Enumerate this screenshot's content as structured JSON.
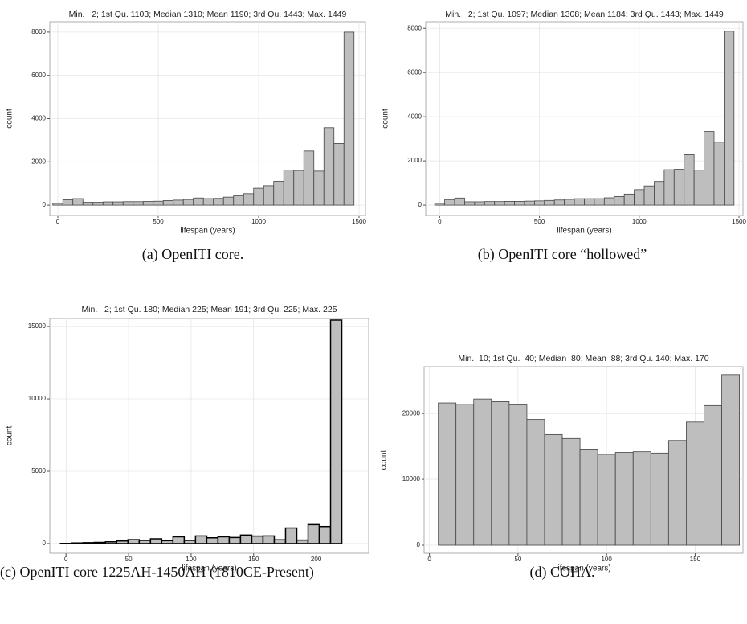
{
  "chart_data": [
    {
      "type": "histogram",
      "title": "Min.   2; 1st Qu. 1103; Median 1310; Mean 1190; 3rd Qu. 1443; Max. 1449",
      "xlabel": "lifespan (years)",
      "ylabel": "count",
      "caption": "(a) OpenITI core.",
      "bins": [
        -25,
        25,
        75,
        125,
        175,
        225,
        275,
        325,
        375,
        425,
        475,
        525,
        575,
        625,
        675,
        725,
        775,
        825,
        875,
        925,
        975,
        1025,
        1075,
        1125,
        1175,
        1225,
        1275,
        1325,
        1375,
        1425,
        1475
      ],
      "counts": [
        80,
        250,
        300,
        130,
        130,
        150,
        150,
        160,
        160,
        170,
        180,
        210,
        230,
        260,
        330,
        300,
        310,
        370,
        430,
        530,
        780,
        900,
        1100,
        1620,
        1600,
        2500,
        1570,
        3580,
        2850,
        8000
      ],
      "xlim": [
        -40,
        1532
      ],
      "ylim": [
        -480,
        8480
      ],
      "xticks": [
        0,
        500,
        1000,
        1500
      ],
      "yticks": [
        0,
        2000,
        4000,
        6000,
        8000
      ],
      "color": "#bebebe",
      "grid": true
    },
    {
      "type": "histogram",
      "title": "Min.   2; 1st Qu. 1097; Median 1308; Mean 1184; 3rd Qu. 1443; Max. 1449",
      "xlabel": "lifespan (years)",
      "ylabel": "count",
      "caption": "(b) OpenITI core “hollowed”",
      "bins": [
        -25,
        25,
        75,
        125,
        175,
        225,
        275,
        325,
        375,
        425,
        475,
        525,
        575,
        625,
        675,
        725,
        775,
        825,
        875,
        925,
        975,
        1025,
        1075,
        1125,
        1175,
        1225,
        1275,
        1325,
        1375,
        1425,
        1475
      ],
      "counts": [
        80,
        250,
        320,
        150,
        150,
        160,
        160,
        170,
        170,
        180,
        190,
        210,
        230,
        260,
        290,
        290,
        290,
        330,
        390,
        500,
        700,
        870,
        1070,
        1600,
        1620,
        2280,
        1580,
        3330,
        2850,
        7870
      ],
      "xlim": [
        -70,
        1520
      ],
      "ylim": [
        -470,
        8300
      ],
      "xticks": [
        0,
        500,
        1000,
        1500
      ],
      "yticks": [
        0,
        2000,
        4000,
        6000,
        8000
      ],
      "color": "#bebebe",
      "grid": true
    },
    {
      "type": "histogram",
      "title": "Min.   2; 1st Qu. 180; Median 225; Mean 191; 3rd Qu. 225; Max. 225",
      "xlabel": "lifespan (years)",
      "ylabel": "count",
      "caption": "(c) OpenITI core 1225AH-1450AH (1810CE-Present)",
      "bins": [
        -4.5,
        4.5,
        13.5,
        22.5,
        31.5,
        40.5,
        49.5,
        58.5,
        67.5,
        76.5,
        85.5,
        94.5,
        103.5,
        112.5,
        121.5,
        130.5,
        139.5,
        148.5,
        157.5,
        166.5,
        175.5,
        184.5,
        193.5,
        202.5,
        211.5,
        220.5
      ],
      "counts": [
        10,
        40,
        60,
        80,
        120,
        180,
        270,
        220,
        330,
        200,
        470,
        220,
        530,
        400,
        470,
        420,
        590,
        520,
        530,
        260,
        1080,
        240,
        1310,
        1180,
        15450
      ],
      "xlim": [
        -13,
        242
      ],
      "ylim": [
        -670,
        15560
      ],
      "xticks": [
        0,
        50,
        100,
        150,
        200
      ],
      "yticks": [
        0,
        5000,
        10000,
        15000
      ],
      "color": "#bebebe",
      "grid": true
    },
    {
      "type": "histogram",
      "title": "Min.  10; 1st Qu.  40; Median  80; Mean  88; 3rd Qu. 140; Max. 170",
      "xlabel": "lifespan (years)",
      "ylabel": "count",
      "caption": "(d) COHA.",
      "bins": [
        5,
        15,
        25,
        35,
        45,
        55,
        65,
        75,
        85,
        95,
        105,
        115,
        125,
        135,
        145,
        155,
        165,
        175
      ],
      "counts": [
        21600,
        21400,
        22200,
        21800,
        21300,
        19100,
        16800,
        16200,
        14600,
        13800,
        14100,
        14200,
        14000,
        15900,
        18700,
        21200,
        25900
      ],
      "xlim": [
        -3,
        177
      ],
      "ylim": [
        -1220,
        27100
      ],
      "xticks": [
        0,
        50,
        100,
        150
      ],
      "yticks": [
        0,
        10000,
        20000
      ],
      "color": "#bebebe",
      "grid": true
    }
  ]
}
